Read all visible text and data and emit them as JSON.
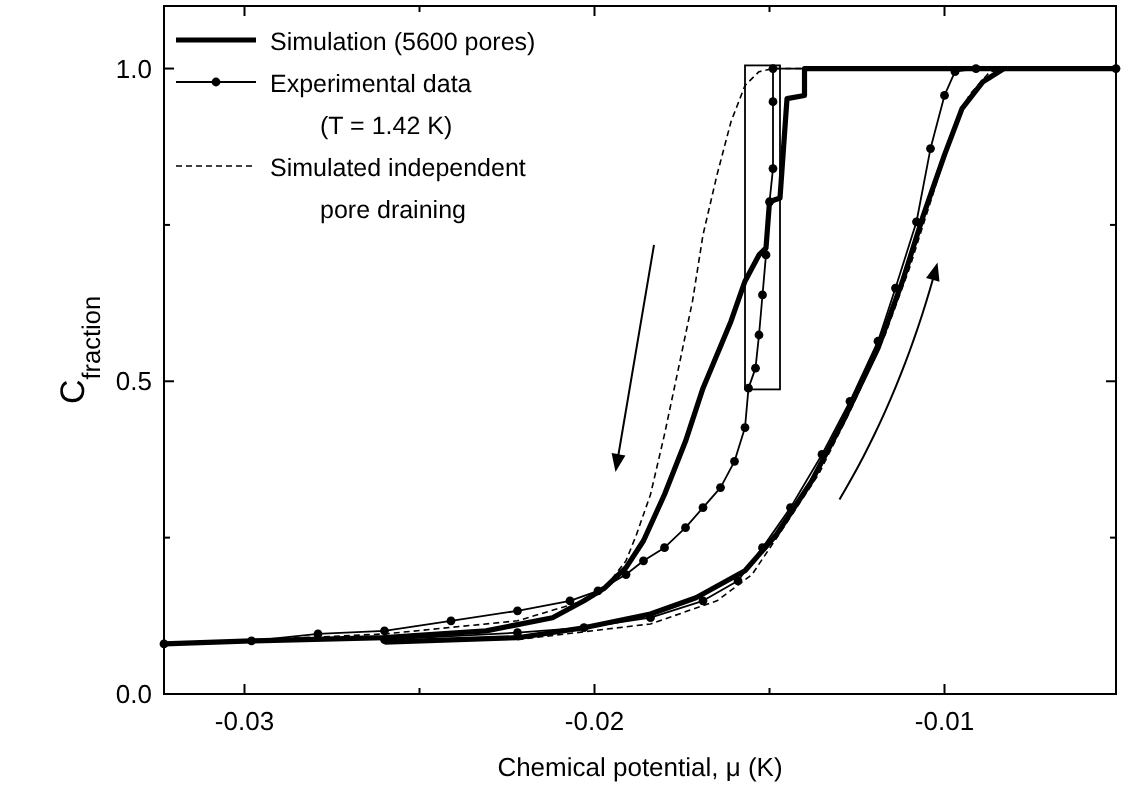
{
  "chart_data": {
    "type": "line",
    "xlabel": "Chemical potential, μ (K)",
    "ylabel": "C$_{fraction}$",
    "xlim": [
      -0.0323,
      -0.0051
    ],
    "xticks": [
      -0.03,
      {
        "value": -0.025,
        "label": null
      },
      -0.02,
      {
        "value": -0.015,
        "label": null
      },
      -0.01
    ],
    "ylim": [
      0,
      1.1
    ],
    "yticks": [
      {
        "value": 0,
        "label": "0.0"
      },
      {
        "value": 0.25,
        "label": null
      },
      {
        "value": 0.5,
        "label": "0.5"
      },
      {
        "value": 0.75,
        "label": null
      },
      {
        "value": 1,
        "label": "1.0"
      }
    ],
    "grid": false,
    "legend": "top left",
    "series": [
      {
        "name": "Simulation (5600 pores)",
        "color": "#000000",
        "line_style": "solid",
        "marker": "none",
        "x": [
          -0.0323,
          -0.0298,
          -0.026,
          -0.0231,
          -0.0212,
          -0.0203,
          -0.0197,
          -0.0191,
          -0.0186,
          -0.018,
          -0.0174,
          -0.0169,
          -0.0161,
          -0.0157,
          -0.0153,
          -0.0151,
          -0.015,
          -0.0147,
          -0.0145,
          -0.014,
          -0.014,
          -0.0051
        ],
        "values": [
          0.08,
          0.085,
          0.09,
          0.101,
          0.122,
          0.149,
          0.17,
          0.202,
          0.245,
          0.319,
          0.404,
          0.489,
          0.596,
          0.66,
          0.702,
          0.713,
          0.787,
          0.793,
          0.952,
          0.957,
          1,
          1
        ]
      },
      {
        "name": "Experimental data\n(T = 1.42 K)",
        "color": "#000000",
        "line_style": "solid",
        "marker": "circle",
        "x": [
          -0.0323,
          -0.0298,
          -0.0279,
          -0.026,
          -0.0241,
          -0.0222,
          -0.0207,
          -0.0199,
          -0.0191,
          -0.0186,
          -0.018,
          -0.0174,
          -0.0169,
          -0.0164,
          -0.016,
          -0.0157,
          -0.0156,
          -0.0154,
          -0.0153,
          -0.0152,
          -0.0151,
          -0.015,
          -0.0149,
          -0.0149,
          -0.0149,
          -0.0051
        ],
        "values": [
          0.08,
          0.085,
          0.096,
          0.101,
          0.117,
          0.133,
          0.149,
          0.165,
          0.191,
          0.213,
          0.234,
          0.266,
          0.298,
          0.33,
          0.372,
          0.426,
          0.489,
          0.521,
          0.574,
          0.638,
          0.702,
          0.787,
          0.84,
          0.947,
          1,
          1
        ]
      },
      {
        "name": "Simulated independent\npore draining",
        "color": "#000000",
        "line_style": "dashed",
        "marker": "none",
        "x": [
          -0.0323,
          -0.026,
          -0.0222,
          -0.0203,
          -0.0197,
          -0.0191,
          -0.0188,
          -0.0184,
          -0.018,
          -0.0176,
          -0.0172,
          -0.0169,
          -0.0165,
          -0.0161,
          -0.0157,
          -0.0153,
          -0.0149,
          -0.0051
        ],
        "values": [
          0.08,
          0.096,
          0.117,
          0.149,
          0.17,
          0.213,
          0.255,
          0.319,
          0.415,
          0.521,
          0.628,
          0.734,
          0.83,
          0.915,
          0.973,
          0.995,
          1,
          1
        ]
      },
      {
        "color": "#000000",
        "line_style": "solid",
        "marker": "none",
        "x": [
          -0.026,
          -0.0222,
          -0.0203,
          -0.0184,
          -0.0171,
          -0.0157,
          -0.0148,
          -0.0138,
          -0.0129,
          -0.0119,
          -0.0112,
          -0.0106,
          -0.01,
          -0.0095,
          -0.0089,
          -0.0083
        ],
        "values": [
          0.083,
          0.09,
          0.106,
          0.128,
          0.154,
          0.197,
          0.255,
          0.34,
          0.436,
          0.553,
          0.66,
          0.766,
          0.862,
          0.936,
          0.979,
          1
        ]
      },
      {
        "color": "#000000",
        "line_style": "solid",
        "marker": "circle",
        "x": [
          -0.026,
          -0.0222,
          -0.0203,
          -0.0184,
          -0.0169,
          -0.0159,
          -0.0152,
          -0.0144,
          -0.0135,
          -0.0127,
          -0.0119,
          -0.0114,
          -0.0108,
          -0.0104,
          -0.01,
          -0.0097,
          -0.0091
        ],
        "values": [
          0.087,
          0.098,
          0.106,
          0.122,
          0.149,
          0.181,
          0.234,
          0.298,
          0.383,
          0.468,
          0.564,
          0.649,
          0.755,
          0.872,
          0.957,
          0.995,
          1
        ]
      },
      {
        "color": "#000000",
        "line_style": "dashed",
        "marker": "none",
        "x": [
          -0.0222,
          -0.0184,
          -0.0165,
          -0.0155,
          -0.0146,
          -0.0136,
          -0.0127,
          -0.0117,
          -0.011,
          -0.0104,
          -0.0098,
          -0.0093,
          -0.0087,
          -0.0081
        ],
        "values": [
          0.087,
          0.112,
          0.149,
          0.191,
          0.266,
          0.351,
          0.452,
          0.574,
          0.681,
          0.787,
          0.894,
          0.957,
          0.995,
          1
        ]
      }
    ]
  }
}
